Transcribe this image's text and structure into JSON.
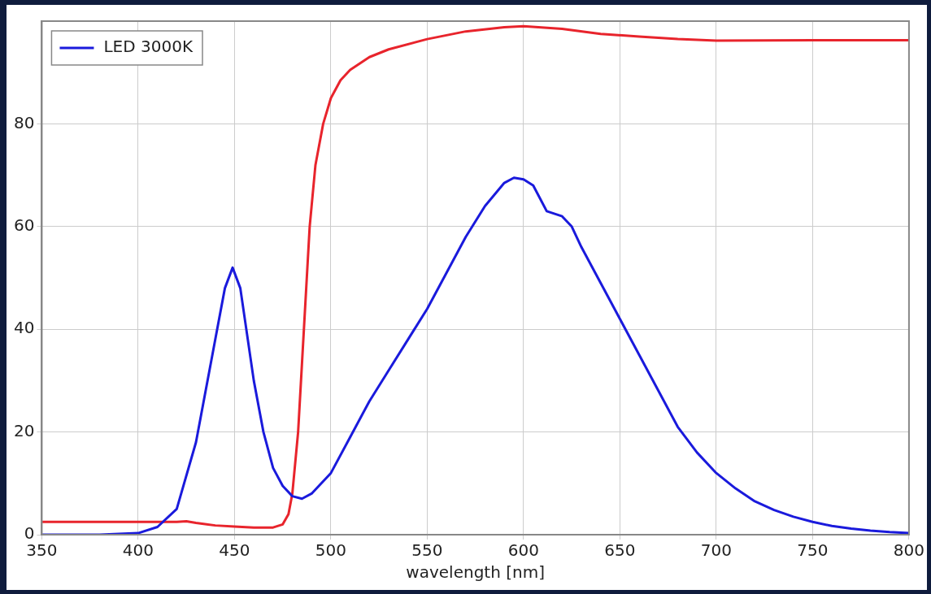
{
  "chart_data": {
    "type": "line",
    "xlabel": "wavelength [nm]",
    "xlim": [
      350,
      800
    ],
    "xticks": [
      350,
      400,
      450,
      500,
      550,
      600,
      650,
      700,
      750,
      800
    ],
    "ylim": [
      0,
      100
    ],
    "yticks": [
      0,
      20,
      40,
      60,
      80
    ],
    "grid": true,
    "legend": "top left",
    "marker": "none",
    "line_style": "solid",
    "series": [
      {
        "name": "LED 3000K",
        "color": "#1a1adc",
        "x": [
          350,
          380,
          400,
          410,
          420,
          430,
          440,
          445,
          449,
          453,
          460,
          465,
          470,
          475,
          480,
          485,
          490,
          500,
          510,
          520,
          530,
          540,
          550,
          560,
          570,
          580,
          590,
          595,
          600,
          605,
          612,
          620,
          625,
          630,
          640,
          650,
          660,
          670,
          680,
          690,
          700,
          710,
          720,
          730,
          740,
          750,
          760,
          770,
          780,
          790,
          800
        ],
        "values": [
          0,
          0,
          0.3,
          1.5,
          5,
          18,
          38,
          48,
          52,
          48,
          30,
          20,
          13,
          9.5,
          7.5,
          7,
          8,
          12,
          19,
          26,
          32,
          38,
          44,
          51,
          58,
          64,
          68.5,
          69.5,
          69.2,
          68,
          63,
          62,
          60,
          56,
          49,
          42,
          35,
          28,
          21,
          16,
          12,
          9,
          6.5,
          4.8,
          3.5,
          2.5,
          1.7,
          1.2,
          0.8,
          0.5,
          0.3
        ]
      },
      {
        "color": "#e8242c",
        "x": [
          350,
          400,
          420,
          425,
          430,
          440,
          450,
          460,
          470,
          475,
          478,
          480,
          483,
          486,
          489,
          492,
          496,
          500,
          505,
          510,
          520,
          530,
          550,
          570,
          590,
          600,
          620,
          640,
          660,
          680,
          700,
          750,
          800
        ],
        "values": [
          2.5,
          2.5,
          2.5,
          2.6,
          2.3,
          1.8,
          1.6,
          1.4,
          1.4,
          2,
          4,
          8,
          20,
          40,
          60,
          72,
          80,
          85,
          88.5,
          90.5,
          93,
          94.5,
          96.5,
          98,
          98.8,
          99,
          98.5,
          97.5,
          97,
          96.5,
          96.2,
          96.3,
          96.3
        ]
      }
    ]
  }
}
